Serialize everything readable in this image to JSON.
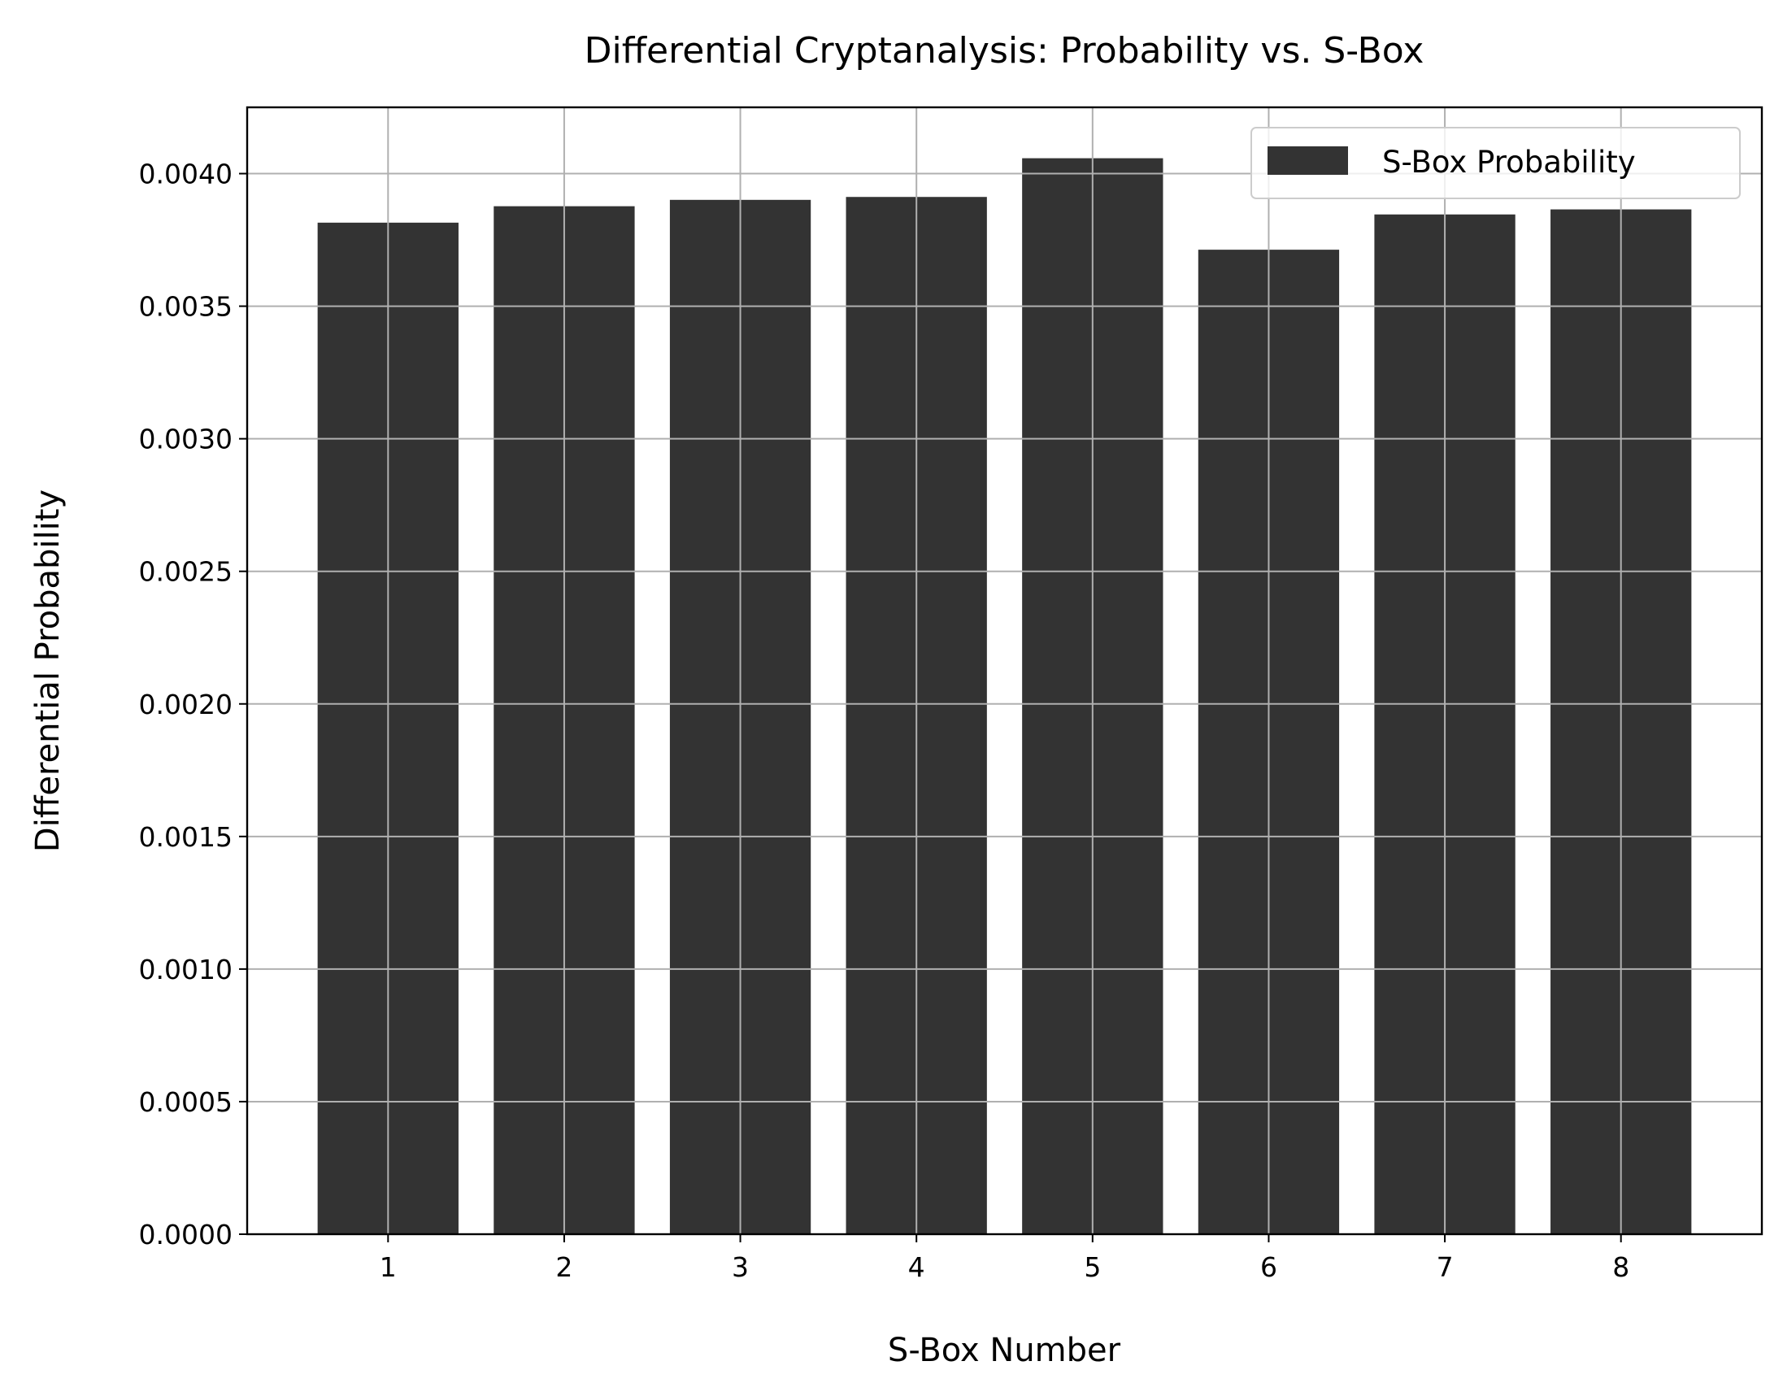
{
  "chart_data": {
    "type": "bar",
    "title": "Differential Cryptanalysis: Probability vs. S-Box",
    "xlabel": "S-Box Number",
    "ylabel": "Differential Probability",
    "categories": [
      "1",
      "2",
      "3",
      "4",
      "5",
      "6",
      "7",
      "8"
    ],
    "series": [
      {
        "name": "S-Box Probability",
        "values": [
          0.003815,
          0.003877,
          0.003901,
          0.003912,
          0.004058,
          0.003713,
          0.003846,
          0.003865
        ]
      }
    ],
    "ylim": [
      0,
      0.00425
    ],
    "yticks": [
      "0.0000",
      "0.0005",
      "0.0010",
      "0.0015",
      "0.0020",
      "0.0025",
      "0.0030",
      "0.0035",
      "0.0040"
    ],
    "grid": true,
    "legend_position": "top-right",
    "bar_color": "#333333"
  }
}
